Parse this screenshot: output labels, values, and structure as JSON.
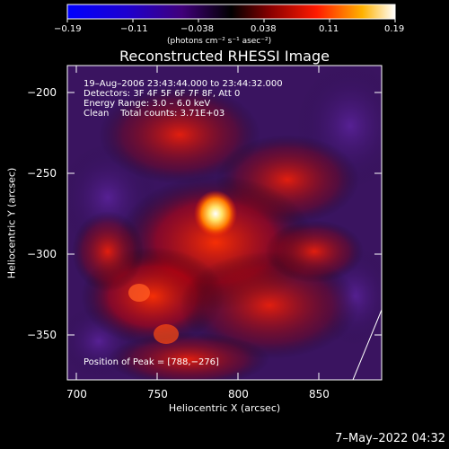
{
  "colorbar": {
    "tick_labels": [
      "−0.19",
      "−0.11",
      "−0.038",
      "0.038",
      "0.11",
      "0.19"
    ],
    "unit_label": "(photons cm⁻² s⁻¹ asec⁻²)"
  },
  "title": "Reconstructed RHESSI Image",
  "info": {
    "time": "19–Aug–2006 23:43:44.000 to 23:44:32.000",
    "detectors": "Detectors: 3F 4F 5F 6F 7F 8F, Att 0",
    "energy": "Energy Range: 3.0 – 6.0 keV",
    "clean": "Clean    Total counts: 3.71E+03",
    "peak": "Position of Peak = [788,−276]"
  },
  "axes": {
    "xlabel": "Heliocentric X (arcsec)",
    "ylabel": "Heliocentric Y (arcsec)",
    "xticks": [
      "700",
      "750",
      "800",
      "850"
    ],
    "yticks": [
      "−200",
      "−250",
      "−300",
      "−350"
    ]
  },
  "footer": {
    "date": "7–May–2022 04:32"
  },
  "colors": {
    "background": "#000000",
    "foreground": "#ffffff",
    "peak": "#ffe36a"
  }
}
